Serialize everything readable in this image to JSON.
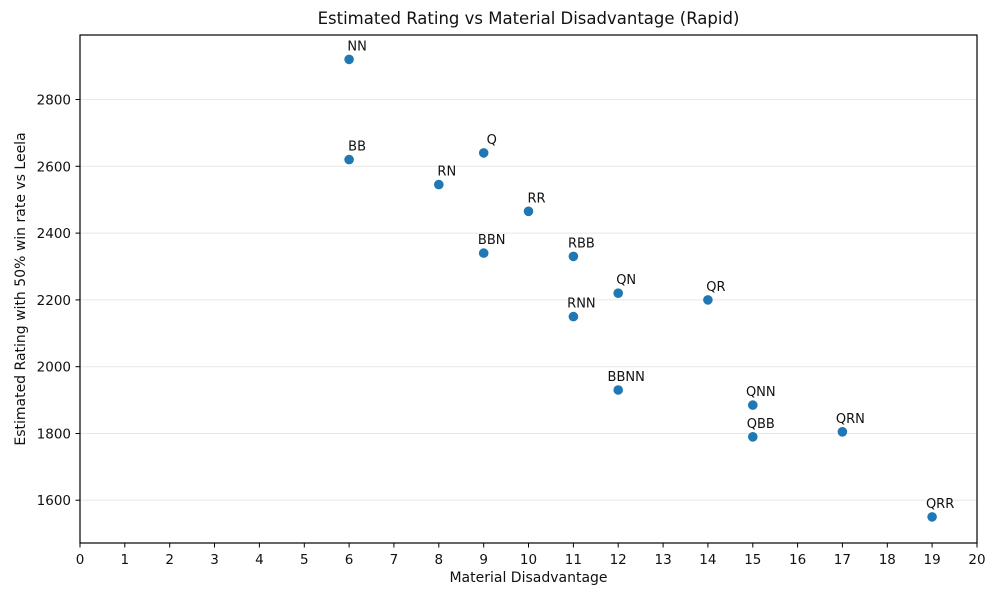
{
  "chart_data": {
    "type": "scatter",
    "title": "Estimated Rating vs Material Disadvantage (Rapid)",
    "xlabel": "Material Disadvantage",
    "ylabel": "Estimated Rating with 50% win rate vs Leela",
    "xlim": [
      0,
      20
    ],
    "ylim": [
      1472,
      2993
    ],
    "x_ticks": [
      0,
      1,
      2,
      3,
      4,
      5,
      6,
      7,
      8,
      9,
      10,
      11,
      12,
      13,
      14,
      15,
      16,
      17,
      18,
      19,
      20
    ],
    "y_ticks": [
      1600,
      1800,
      2000,
      2200,
      2400,
      2600,
      2800
    ],
    "grid": "horizontal",
    "legend": "none",
    "point_color": "#1f77b4",
    "grid_color": "#e8e8e8",
    "spine_color": "#000000",
    "points": [
      {
        "label": "NN",
        "x": 6,
        "y": 2920
      },
      {
        "label": "BB",
        "x": 6,
        "y": 2620
      },
      {
        "label": "RN",
        "x": 8,
        "y": 2545
      },
      {
        "label": "Q",
        "x": 9,
        "y": 2640
      },
      {
        "label": "BBN",
        "x": 9,
        "y": 2340
      },
      {
        "label": "RR",
        "x": 10,
        "y": 2465
      },
      {
        "label": "RBB",
        "x": 11,
        "y": 2330
      },
      {
        "label": "RNN",
        "x": 11,
        "y": 2150
      },
      {
        "label": "QN",
        "x": 12,
        "y": 2220
      },
      {
        "label": "BBNN",
        "x": 12,
        "y": 1930
      },
      {
        "label": "QR",
        "x": 14,
        "y": 2200
      },
      {
        "label": "QNN",
        "x": 15,
        "y": 1885
      },
      {
        "label": "QBB",
        "x": 15,
        "y": 1790
      },
      {
        "label": "QRN",
        "x": 17,
        "y": 1805
      },
      {
        "label": "QRR",
        "x": 19,
        "y": 1550
      }
    ]
  }
}
